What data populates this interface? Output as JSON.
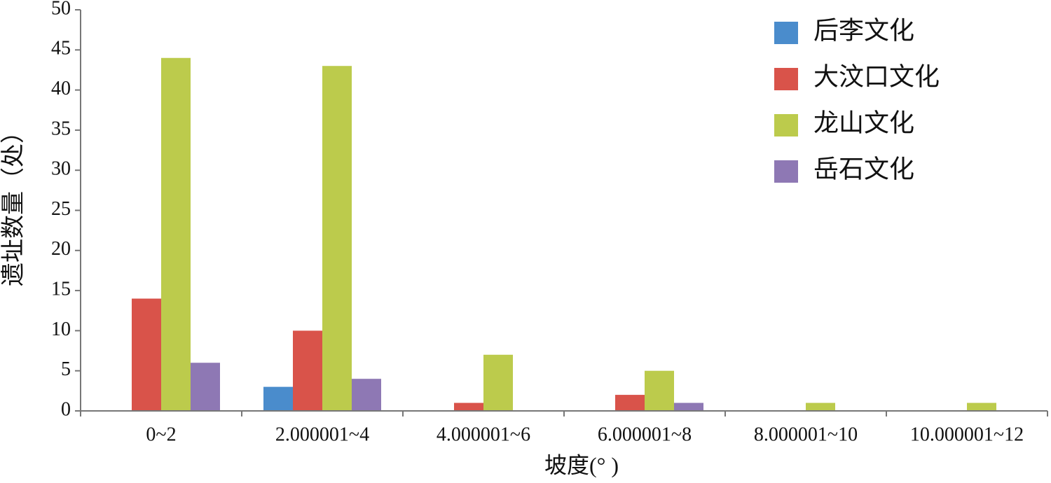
{
  "chart_data": {
    "type": "bar",
    "x_label": "坡度(° )",
    "y_label": "遗址数量（处）",
    "categories": [
      "0~2",
      "2.000001~4",
      "4.000001~6",
      "6.000001~8",
      "8.000001~10",
      "10.000001~12"
    ],
    "series": [
      {
        "name": "后李文化",
        "color": "#4a8ccc",
        "values": [
          0,
          3,
          0,
          0,
          0,
          0
        ]
      },
      {
        "name": "大汶口文化",
        "color": "#d9534a",
        "values": [
          14,
          10,
          1,
          2,
          0,
          0
        ]
      },
      {
        "name": "龙山文化",
        "color": "#bccb4c",
        "values": [
          44,
          43,
          7,
          5,
          1,
          1
        ]
      },
      {
        "name": "岳石文化",
        "color": "#8e78b4",
        "values": [
          6,
          4,
          0,
          1,
          0,
          0
        ]
      }
    ],
    "ylim": [
      0,
      50
    ],
    "yticks": [
      0,
      5,
      10,
      15,
      20,
      25,
      30,
      35,
      40,
      45,
      50
    ],
    "grid": false,
    "legend": "upper right"
  }
}
